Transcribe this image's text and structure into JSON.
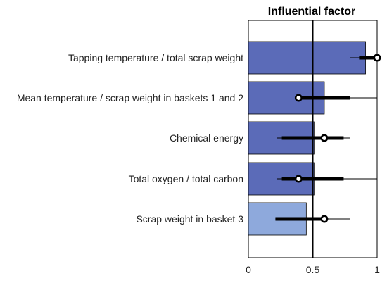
{
  "chart_data": {
    "type": "bar",
    "orientation": "horizontal",
    "title": "Influential factor",
    "xlabel": "",
    "ylabel": "",
    "xlim": [
      0,
      1
    ],
    "xticks": [
      {
        "value": 0,
        "label": "0"
      },
      {
        "value": 0.5,
        "label": "0.5"
      },
      {
        "value": 1,
        "label": "1"
      }
    ],
    "reference_line": 0.5,
    "grid": false,
    "categories": [
      "Tapping temperature / total scrap weight",
      "Mean temperature / scrap weight in baskets 1 and 2",
      "Chemical energy",
      "Total oxygen / total carbon",
      "Scrap weight in basket 3"
    ],
    "values": [
      0.91,
      0.59,
      0.51,
      0.51,
      0.45
    ],
    "bar_colors": [
      "#5b6bb8",
      "#5b6bb8",
      "#5b6bb8",
      "#5b6bb8",
      "#8ea9dc"
    ],
    "medians": [
      1.0,
      0.39,
      0.59,
      0.39,
      0.59
    ],
    "iqr_low": [
      0.86,
      0.39,
      0.26,
      0.26,
      0.21
    ],
    "iqr_high": [
      1.0,
      0.79,
      0.74,
      0.74,
      0.59
    ],
    "whisker_low": [
      0.79,
      0.39,
      0.22,
      0.22,
      0.21
    ],
    "whisker_high": [
      1.0,
      1.0,
      0.79,
      1.0,
      0.79
    ]
  }
}
